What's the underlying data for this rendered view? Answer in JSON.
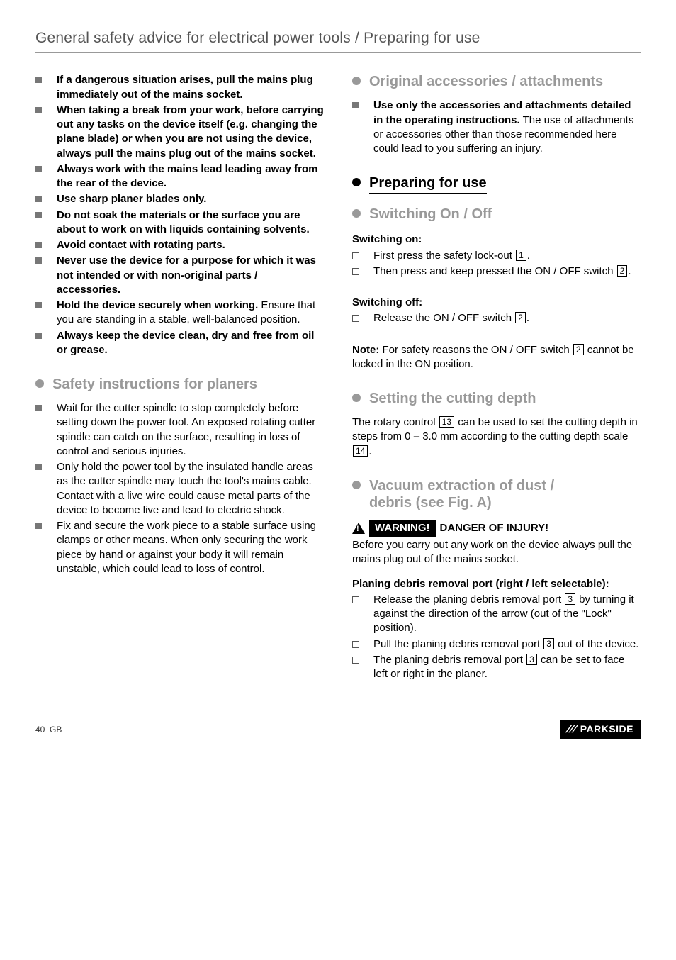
{
  "breadcrumb": "General safety advice for electrical power tools / Preparing for use",
  "left": {
    "safety_bullets": [
      {
        "bold": "If a dangerous situation arises, pull the mains plug immediately out of the mains socket.",
        "plain": ""
      },
      {
        "bold": "When taking a break from your work, before carrying out any tasks on the device itself (e.g. changing the plane blade) or when you are not using the device, always pull the mains plug out of the mains socket.",
        "plain": ""
      },
      {
        "bold": "Always work with the mains lead leading away from the rear of the device.",
        "plain": ""
      },
      {
        "bold": "Use sharp planer blades only.",
        "plain": ""
      },
      {
        "bold": "Do not soak the materials or the surface you are about to work on with liquids containing solvents.",
        "plain": ""
      },
      {
        "bold": "Avoid contact with rotating parts.",
        "plain": ""
      },
      {
        "bold": "Never use the device for a purpose for which it was not intended or with non-original parts / accessories.",
        "plain": ""
      },
      {
        "bold": "Hold the device securely when working.",
        "plain": " Ensure that you are standing in a stable, well-balanced position."
      },
      {
        "bold": "Always keep the device clean, dry and free from oil or grease.",
        "plain": ""
      }
    ],
    "h_planer": "Safety instructions for planers",
    "planer_bullets": [
      "Wait for the cutter spindle to stop completely before setting down the power tool. An exposed rotating cutter spindle can catch on the surface, resulting in loss of control and serious injuries.",
      "Only hold the power tool by the insulated handle areas as the cutter spindle may touch the tool's mains cable. Contact with a live wire could cause metal parts of the device to become live and lead to electric shock.",
      "Fix and secure the work piece to a stable surface using clamps or other means. When only securing the work piece by hand or against your body it will remain unstable, which could lead to loss of control."
    ]
  },
  "right": {
    "h_accessories": "Original accessories / attachments",
    "acc_bold": "Use only the accessories and attachments detailed in the operating instructions.",
    "acc_plain": " The use of attachments or accessories other than those recommended here could lead to you suffering an injury.",
    "h_prepare": "Preparing for use",
    "h_switch": "Switching On / Off",
    "switch_on_head": "Switching on:",
    "switch_on_1a": "First press the safety lock-out ",
    "switch_on_1n": "1",
    "switch_on_1b": ".",
    "switch_on_2a": "Then press and keep pressed the ON / OFF switch ",
    "switch_on_2n": "2",
    "switch_on_2b": ".",
    "switch_off_head": "Switching off:",
    "switch_off_a": "Release the ON / OFF switch ",
    "switch_off_n": "2",
    "switch_off_b": ".",
    "note_bold": "Note:",
    "note_a": " For safety reasons the ON / OFF switch ",
    "note_n": "2",
    "note_b": " cannot be locked in the ON position.",
    "h_depth": "Setting the cutting depth",
    "depth_a": "The rotary control ",
    "depth_n1": "13",
    "depth_b": " can be used to set the cutting depth in steps from 0 – 3.0 mm according to the cutting depth scale ",
    "depth_n2": "14",
    "depth_c": ".",
    "h_vac1": "Vacuum extraction of dust /",
    "h_vac2": "debris (see Fig. A)",
    "warn_label": "WARNING!",
    "warn_tail": " DANGER OF INJURY!",
    "warn_body": "Before you carry out any work on the device always pull the mains plug out of the mains socket.",
    "port_head": "Planing debris removal port (right / left selectable):",
    "port_1a": "Release the planing debris removal port ",
    "port_1n": "3",
    "port_1b": " by turning it against the direction of the arrow (out of the \"Lock\" position).",
    "port_2a": "Pull the planing debris removal port ",
    "port_2n": "3",
    "port_2b": " out of the device.",
    "port_3a": "The planing debris removal port ",
    "port_3n": "3",
    "port_3b": " can be set to face left or right in the planer."
  },
  "footer": {
    "page": "40",
    "region": "GB",
    "brand_stripes": "///",
    "brand": "PARKSIDE"
  }
}
